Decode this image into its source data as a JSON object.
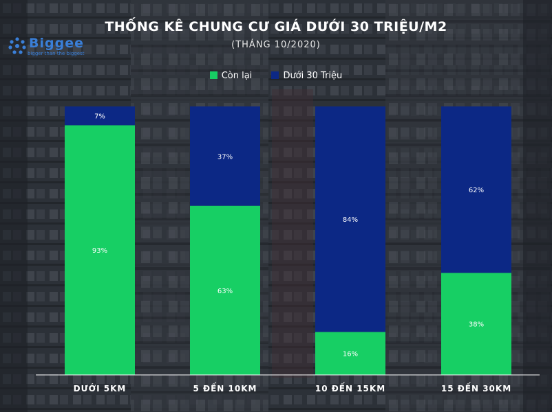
{
  "title": "THỐNG KÊ CHUNG CƯ GIÁ DƯỚI 30 TRIỆU/M2",
  "subtitle": "(THÁNG 10/2020)",
  "logo": {
    "word": "Biggee",
    "tagline": "bigger than the biggest",
    "color": "#3a7fd8"
  },
  "chart_data": {
    "type": "bar",
    "stacked": true,
    "categories": [
      "DƯỚI 5KM",
      "5 ĐẾN 10KM",
      "10 ĐẾN 15KM",
      "15 ĐẾN 30KM"
    ],
    "series": [
      {
        "name": "Còn lại",
        "color": "#17cf64",
        "values": [
          93,
          63,
          16,
          38
        ],
        "labels": [
          "93%",
          "63%",
          "16%",
          "38%"
        ]
      },
      {
        "name": "Dưới 30 Triệu",
        "color": "#0c2885",
        "values": [
          7,
          37,
          84,
          62
        ],
        "labels": [
          "7%",
          "37%",
          "84%",
          "62%"
        ]
      }
    ],
    "ylim": [
      0,
      100
    ],
    "grid": false,
    "legend": "top-center"
  }
}
